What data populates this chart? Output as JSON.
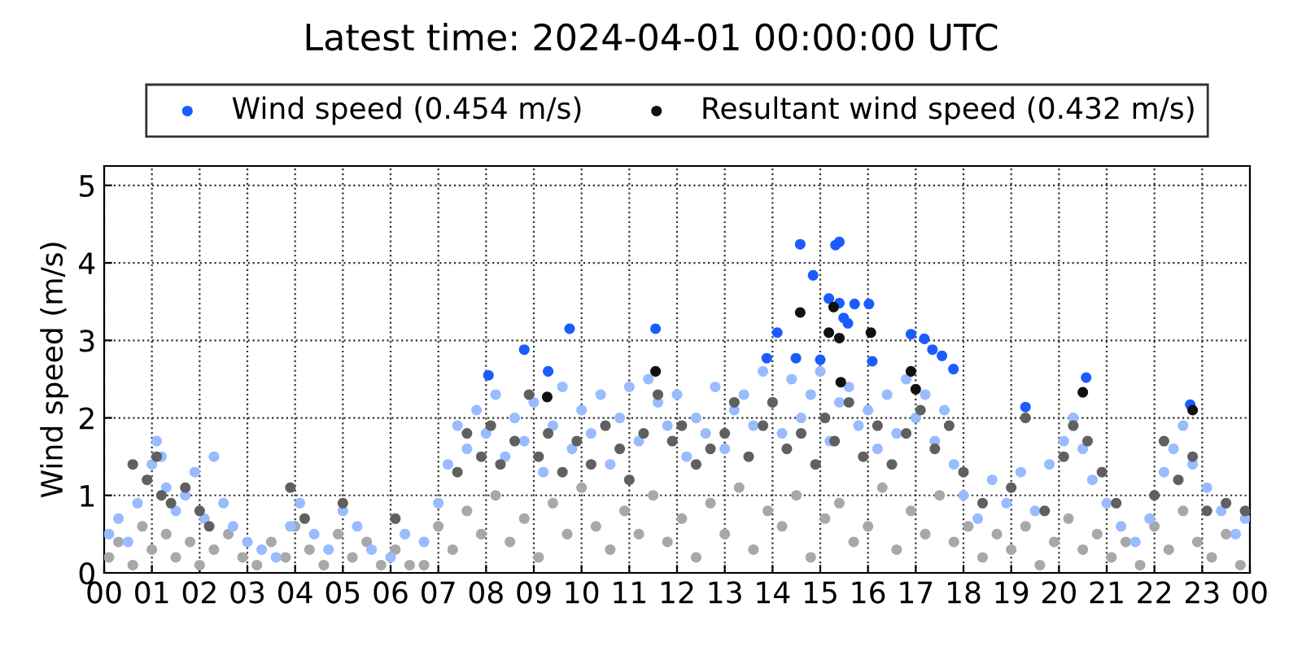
{
  "chart_data": {
    "type": "scatter",
    "title": "Latest time: 2024-04-01 00:00:00 UTC",
    "ylabel": "Wind speed (m/s)",
    "xlim": [
      0,
      24
    ],
    "ylim": [
      0,
      5.25
    ],
    "xticks": [
      {
        "value": 0,
        "label": "00"
      },
      {
        "value": 1,
        "label": "01"
      },
      {
        "value": 2,
        "label": "02"
      },
      {
        "value": 3,
        "label": "03"
      },
      {
        "value": 4,
        "label": "04"
      },
      {
        "value": 5,
        "label": "05"
      },
      {
        "value": 6,
        "label": "06"
      },
      {
        "value": 7,
        "label": "07"
      },
      {
        "value": 8,
        "label": "08"
      },
      {
        "value": 9,
        "label": "09"
      },
      {
        "value": 10,
        "label": "10"
      },
      {
        "value": 11,
        "label": "11"
      },
      {
        "value": 12,
        "label": "12"
      },
      {
        "value": 13,
        "label": "13"
      },
      {
        "value": 14,
        "label": "14"
      },
      {
        "value": 15,
        "label": "15"
      },
      {
        "value": 16,
        "label": "16"
      },
      {
        "value": 17,
        "label": "17"
      },
      {
        "value": 18,
        "label": "18"
      },
      {
        "value": 19,
        "label": "19"
      },
      {
        "value": 20,
        "label": "20"
      },
      {
        "value": 21,
        "label": "21"
      },
      {
        "value": 22,
        "label": "22"
      },
      {
        "value": 23,
        "label": "23"
      },
      {
        "value": 24,
        "label": "00"
      }
    ],
    "yticks": [
      0,
      1,
      2,
      3,
      4,
      5
    ],
    "grid": true,
    "legend": "top",
    "marker": "circle",
    "series": [
      {
        "color": "#a8a8a8",
        "x": [
          0.1,
          0.3,
          0.6,
          0.8,
          1.0,
          1.3,
          1.5,
          1.8,
          2.0,
          2.3,
          2.6,
          2.9,
          3.2,
          3.5,
          3.8,
          4.0,
          4.3,
          4.6,
          4.9,
          5.2,
          5.5,
          5.8,
          6.1,
          6.4,
          6.7,
          7.0,
          7.3,
          7.6,
          7.9,
          8.2,
          8.5,
          8.8,
          9.1,
          9.4,
          9.7,
          10.0,
          10.3,
          10.6,
          10.9,
          11.2,
          11.5,
          11.8,
          12.1,
          12.4,
          12.7,
          13.0,
          13.3,
          13.6,
          13.9,
          14.2,
          14.5,
          14.8,
          15.1,
          15.4,
          15.7,
          16.0,
          16.3,
          16.6,
          16.9,
          17.2,
          17.5,
          17.8,
          18.1,
          18.4,
          18.7,
          19.0,
          19.3,
          19.6,
          19.9,
          20.2,
          20.5,
          20.8,
          21.1,
          21.4,
          21.7,
          22.0,
          22.3,
          22.6,
          22.9,
          23.2,
          23.5,
          23.8
        ],
        "values": [
          0.2,
          0.4,
          0.1,
          0.6,
          0.3,
          0.5,
          0.2,
          0.4,
          0.1,
          0.3,
          0.5,
          0.2,
          0.1,
          0.4,
          0.2,
          0.6,
          0.3,
          0.1,
          0.5,
          0.2,
          0.4,
          0.1,
          0.3,
          0.1,
          0.1,
          0.6,
          0.3,
          0.8,
          0.5,
          1.0,
          0.4,
          0.7,
          0.2,
          0.9,
          0.5,
          1.1,
          0.6,
          0.3,
          0.8,
          0.5,
          1.0,
          0.4,
          0.7,
          0.2,
          0.9,
          0.5,
          1.1,
          0.3,
          0.8,
          0.6,
          1.0,
          0.2,
          0.7,
          0.9,
          0.4,
          0.6,
          1.1,
          0.3,
          0.8,
          0.5,
          1.0,
          0.4,
          0.6,
          0.2,
          0.5,
          0.3,
          0.6,
          0.1,
          0.4,
          0.7,
          0.3,
          0.5,
          0.2,
          0.4,
          0.1,
          0.6,
          0.3,
          0.8,
          0.4,
          0.2,
          0.5,
          0.1
        ]
      },
      {
        "color": "#99bbff",
        "x": [
          0.1,
          0.3,
          0.5,
          0.7,
          0.9,
          1.0,
          1.1,
          1.2,
          1.3,
          1.5,
          1.7,
          1.9,
          2.1,
          2.3,
          2.5,
          2.7,
          3.0,
          3.3,
          3.6,
          3.9,
          4.1,
          4.4,
          4.7,
          5.0,
          5.3,
          5.6,
          6.0,
          6.3,
          6.7,
          7.0,
          7.2,
          7.4,
          7.6,
          7.8,
          8.0,
          8.2,
          8.4,
          8.6,
          8.8,
          9.0,
          9.2,
          9.4,
          9.6,
          9.8,
          10.0,
          10.2,
          10.4,
          10.6,
          10.8,
          11.0,
          11.2,
          11.4,
          11.6,
          11.8,
          12.0,
          12.2,
          12.4,
          12.6,
          12.8,
          13.0,
          13.2,
          13.4,
          13.6,
          13.8,
          14.0,
          14.2,
          14.4,
          14.6,
          14.8,
          15.0,
          15.2,
          15.4,
          15.6,
          15.8,
          16.0,
          16.2,
          16.4,
          16.6,
          16.8,
          17.0,
          17.2,
          17.4,
          17.6,
          17.8,
          18.0,
          18.3,
          18.6,
          18.9,
          19.2,
          19.5,
          19.8,
          20.1,
          20.3,
          20.5,
          20.7,
          21.0,
          21.3,
          21.6,
          21.9,
          22.2,
          22.4,
          22.6,
          22.8,
          23.1,
          23.4,
          23.7,
          23.9
        ],
        "values": [
          0.5,
          0.7,
          0.4,
          0.9,
          1.2,
          1.4,
          1.7,
          1.5,
          1.1,
          0.8,
          1.0,
          1.3,
          0.7,
          1.5,
          0.9,
          0.6,
          0.4,
          0.3,
          0.2,
          0.6,
          0.9,
          0.5,
          0.3,
          0.8,
          0.6,
          0.3,
          0.2,
          0.5,
          0.4,
          0.9,
          1.4,
          1.9,
          1.6,
          2.1,
          1.8,
          2.3,
          1.5,
          2.0,
          1.7,
          2.2,
          1.3,
          1.9,
          2.4,
          1.6,
          2.1,
          1.8,
          2.3,
          1.4,
          2.0,
          2.4,
          1.7,
          2.5,
          2.2,
          1.9,
          2.3,
          1.5,
          2.0,
          1.8,
          2.4,
          1.6,
          2.1,
          2.3,
          1.9,
          2.6,
          2.2,
          1.8,
          2.5,
          2.0,
          2.3,
          2.6,
          1.7,
          2.2,
          2.4,
          1.9,
          2.1,
          1.6,
          2.3,
          1.8,
          2.5,
          2.0,
          2.3,
          1.7,
          2.1,
          1.4,
          1.0,
          0.7,
          1.2,
          0.9,
          1.3,
          0.8,
          1.4,
          1.7,
          2.0,
          1.6,
          1.2,
          0.9,
          0.6,
          0.4,
          0.7,
          1.3,
          1.6,
          1.9,
          1.4,
          1.1,
          0.8,
          0.5,
          0.7
        ]
      },
      {
        "color": "#606060",
        "x": [
          0.6,
          0.9,
          1.1,
          1.2,
          1.4,
          1.7,
          2.0,
          2.2,
          3.9,
          4.2,
          5.0,
          6.1,
          7.4,
          7.6,
          7.9,
          8.1,
          8.3,
          8.6,
          8.9,
          9.1,
          9.3,
          9.6,
          9.9,
          10.2,
          10.5,
          10.8,
          11.0,
          11.3,
          11.6,
          11.9,
          12.1,
          12.4,
          12.7,
          13.0,
          13.2,
          13.5,
          13.8,
          14.0,
          14.3,
          14.6,
          14.9,
          15.1,
          15.3,
          15.6,
          15.9,
          16.2,
          16.5,
          16.8,
          17.1,
          17.4,
          17.7,
          18.0,
          18.4,
          19.0,
          19.3,
          19.7,
          20.1,
          20.3,
          20.6,
          20.9,
          21.2,
          22.0,
          22.2,
          22.5,
          22.8,
          23.1,
          23.5,
          23.9
        ],
        "values": [
          1.4,
          1.2,
          1.5,
          1.0,
          0.9,
          1.1,
          0.8,
          0.6,
          1.1,
          0.7,
          0.9,
          0.7,
          1.3,
          1.8,
          1.5,
          1.9,
          1.4,
          1.7,
          2.3,
          1.5,
          1.8,
          1.3,
          1.7,
          1.4,
          1.9,
          1.6,
          1.2,
          1.8,
          2.3,
          1.7,
          1.9,
          1.4,
          1.6,
          1.8,
          2.2,
          1.5,
          1.9,
          2.2,
          1.6,
          1.8,
          1.4,
          2.0,
          1.7,
          2.2,
          1.5,
          1.9,
          1.4,
          1.8,
          2.1,
          1.6,
          1.9,
          1.3,
          0.9,
          1.1,
          2.0,
          0.8,
          1.5,
          1.9,
          1.7,
          1.3,
          0.9,
          1.0,
          1.7,
          1.2,
          1.5,
          0.8,
          0.9,
          0.8
        ]
      },
      {
        "name": "Wind speed (0.454 m/s)",
        "color": "#1a5cff",
        "x": [
          8.05,
          8.8,
          9.3,
          9.75,
          11.55,
          13.88,
          14.1,
          14.49,
          14.58,
          14.85,
          15.0,
          15.18,
          15.32,
          15.4,
          15.4,
          15.49,
          15.58,
          15.72,
          16.02,
          16.09,
          16.9,
          17.18,
          17.35,
          17.55,
          17.79,
          19.3,
          20.57,
          22.75
        ],
        "values": [
          2.55,
          2.88,
          2.6,
          3.15,
          3.15,
          2.77,
          3.1,
          2.77,
          4.24,
          3.84,
          2.75,
          3.54,
          4.23,
          4.27,
          3.48,
          3.29,
          3.22,
          3.47,
          3.47,
          2.73,
          3.08,
          3.02,
          2.88,
          2.8,
          2.63,
          2.14,
          2.52,
          2.17
        ]
      },
      {
        "name": "Resultant wind speed (0.432 m/s)",
        "color": "#111111",
        "x": [
          9.28,
          11.55,
          14.58,
          15.18,
          15.28,
          15.4,
          15.43,
          16.06,
          16.9,
          17.0,
          20.5,
          22.8
        ],
        "values": [
          2.27,
          2.6,
          3.36,
          3.1,
          3.43,
          3.03,
          2.46,
          3.1,
          2.6,
          2.37,
          2.33,
          2.1
        ]
      }
    ]
  }
}
